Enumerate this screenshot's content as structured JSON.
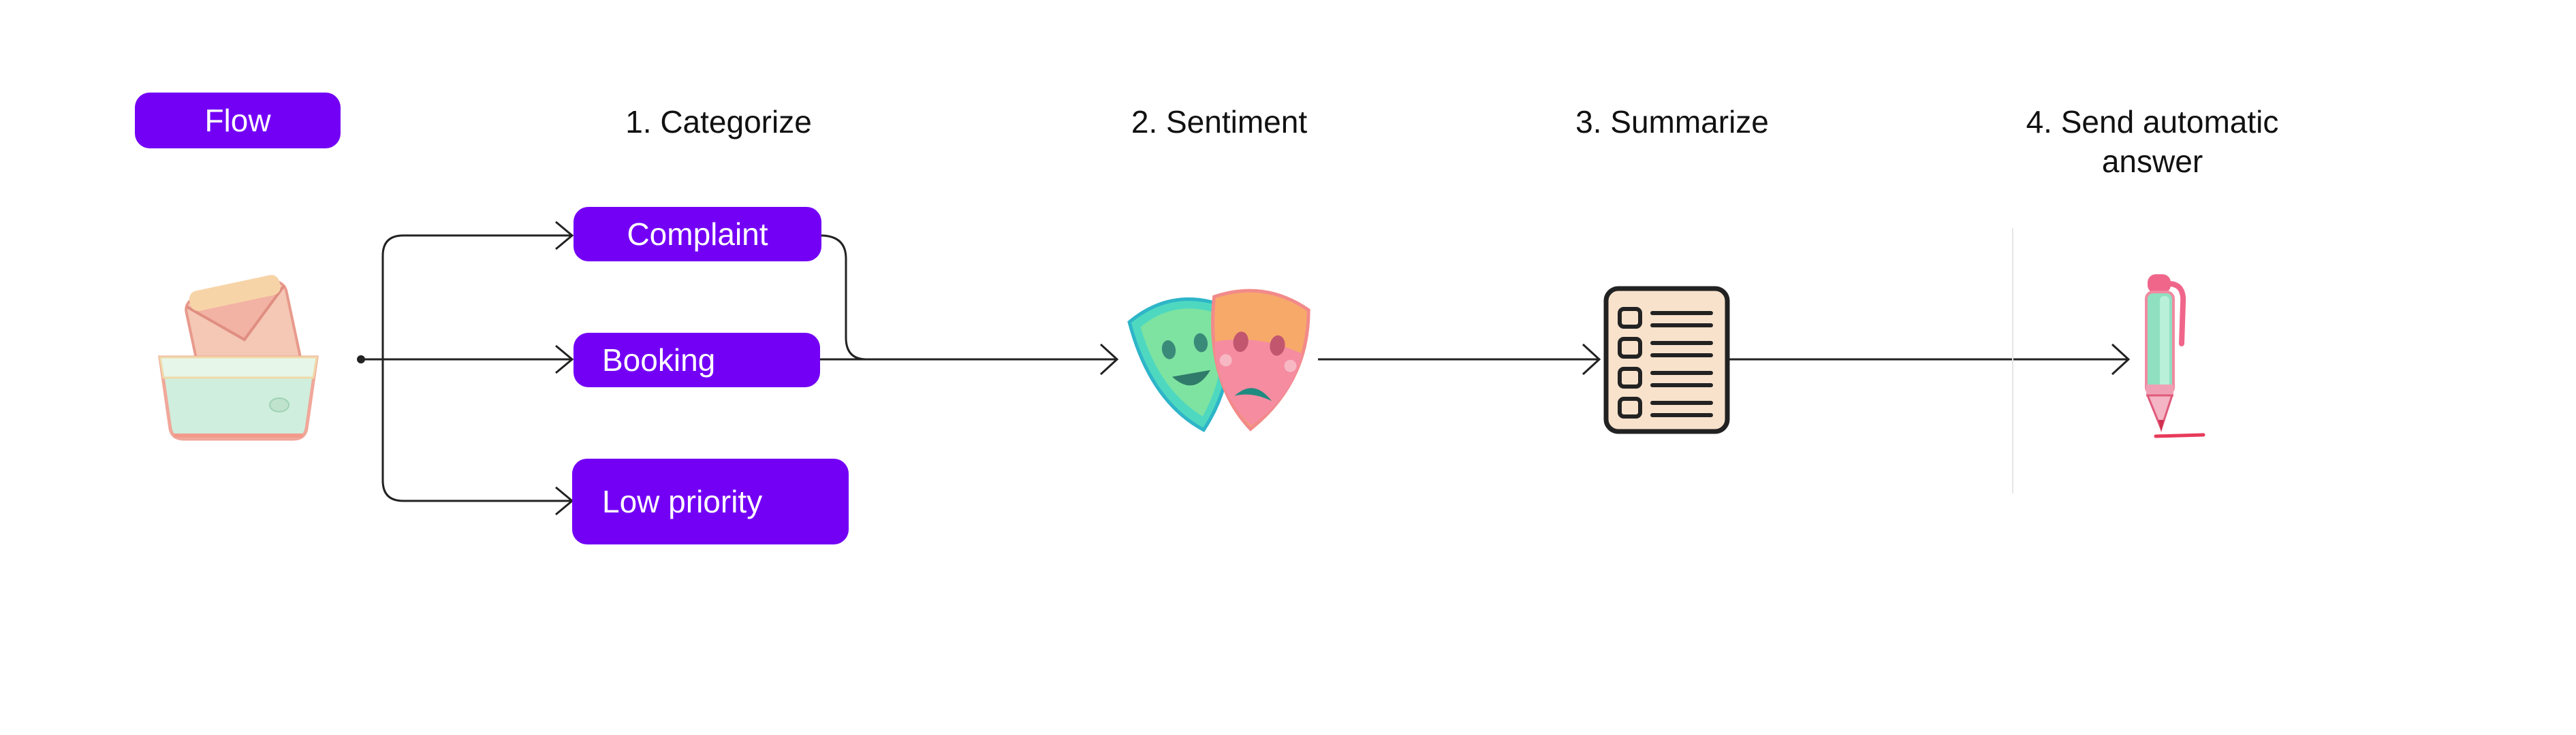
{
  "flow_label": "Flow",
  "steps": [
    {
      "title": "1. Categorize"
    },
    {
      "title": "2. Sentiment"
    },
    {
      "title": "3. Summarize"
    },
    {
      "title": "4. Send automatic answer"
    }
  ],
  "categories": [
    "Complaint",
    "Booking",
    "Low priority"
  ],
  "icons": {
    "inbox": "inbox-tray-icon",
    "masks": "theater-masks-icon",
    "summary": "checklist-icon",
    "pen": "pen-icon"
  },
  "colors": {
    "accent": "#7300f5",
    "line": "#222222"
  }
}
